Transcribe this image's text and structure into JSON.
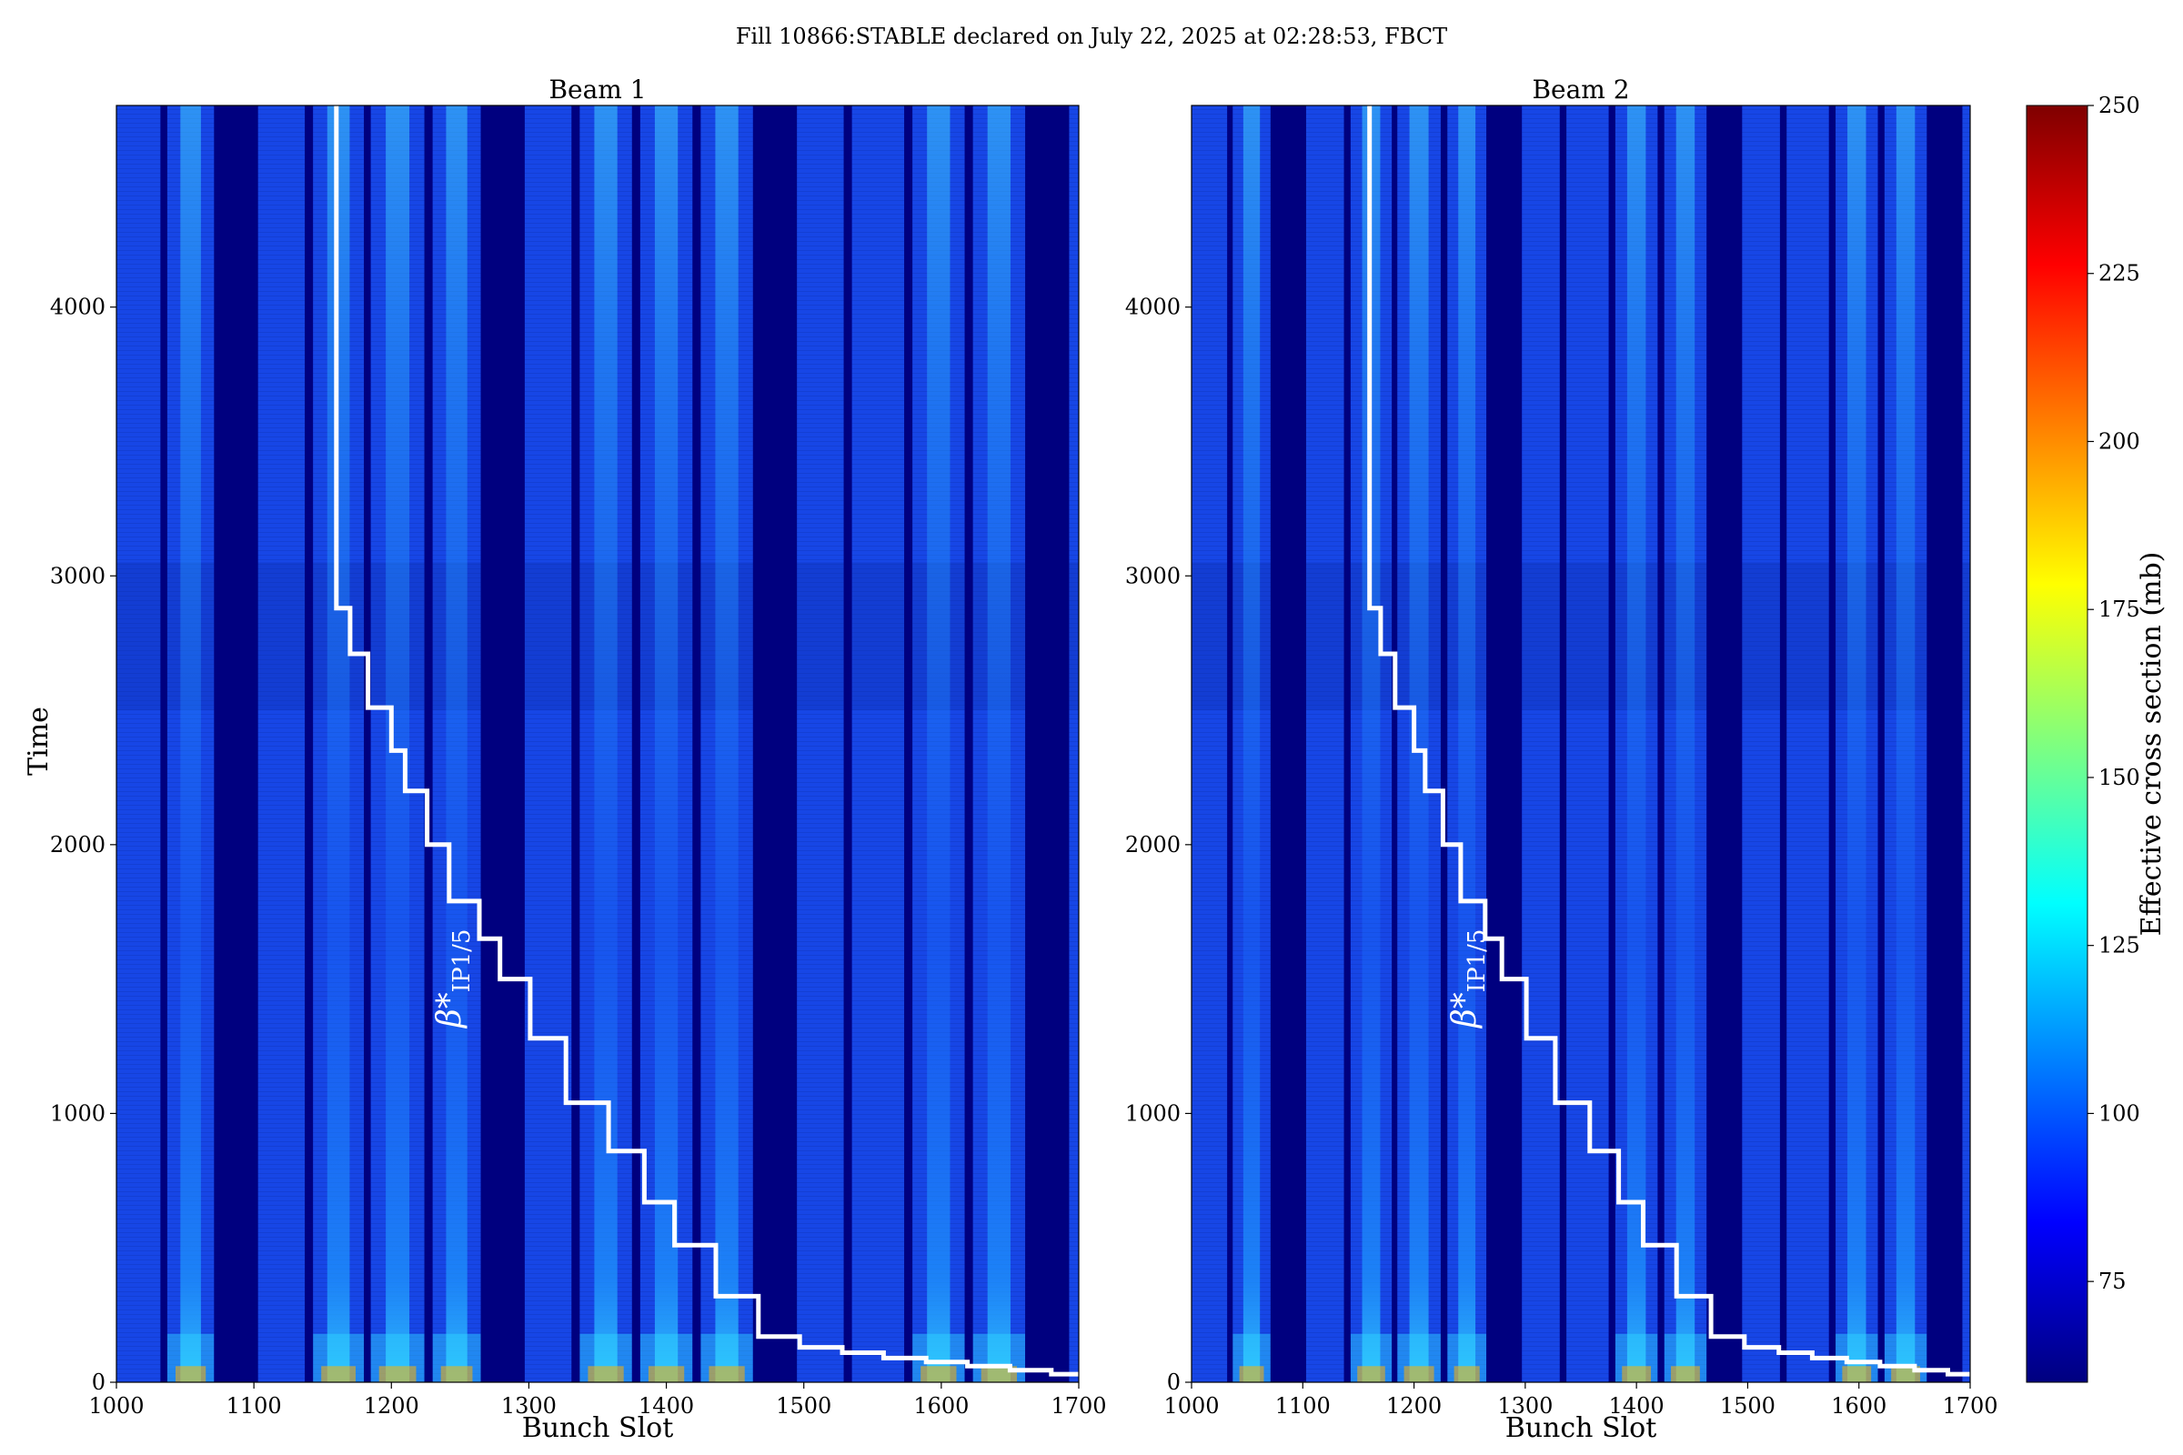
{
  "figure": {
    "suptitle": "Fill 10866:STABLE declared on July 22, 2025 at 02:28:53, FBCT"
  },
  "chart_data": [
    {
      "type": "heatmap",
      "title": "Beam 1",
      "xlabel": "Bunch Slot",
      "ylabel": "Time",
      "xlim": [
        1000,
        1700
      ],
      "ylim": [
        0,
        4750
      ],
      "x_ticks": [
        1000,
        1100,
        1200,
        1300,
        1400,
        1500,
        1600,
        1700
      ],
      "y_ticks": [
        0,
        1000,
        2000,
        3000,
        4000
      ],
      "empty_slot_gaps": [
        [
          1032,
          1037
        ],
        [
          1071,
          1103
        ],
        [
          1137,
          1143
        ],
        [
          1180,
          1185
        ],
        [
          1224,
          1230
        ],
        [
          1265,
          1297
        ],
        [
          1331,
          1337
        ],
        [
          1375,
          1381
        ],
        [
          1419,
          1425
        ],
        [
          1463,
          1495
        ],
        [
          1529,
          1535
        ],
        [
          1573,
          1579
        ],
        [
          1617,
          1623
        ],
        [
          1661,
          1693
        ]
      ],
      "bright_trains": [
        [
          1037,
          1071
        ],
        [
          1143,
          1180
        ],
        [
          1185,
          1224
        ],
        [
          1230,
          1265
        ],
        [
          1337,
          1375
        ],
        [
          1381,
          1419
        ],
        [
          1425,
          1463
        ],
        [
          1579,
          1617
        ],
        [
          1623,
          1661
        ]
      ],
      "annotation": {
        "label": "β*",
        "subscript": "IP1/5",
        "step_line": {
          "x": [
            1160,
            1160,
            1170,
            1170,
            1183,
            1183,
            1200,
            1200,
            1210,
            1210,
            1226,
            1226,
            1242,
            1242,
            1264,
            1264,
            1279,
            1279,
            1301,
            1301,
            1327,
            1327,
            1358,
            1358,
            1384,
            1384,
            1406,
            1406,
            1436,
            1436,
            1467,
            1467,
            1497,
            1497,
            1528,
            1528,
            1558,
            1558,
            1589,
            1589,
            1619,
            1619,
            1650,
            1650,
            1680,
            1680,
            1700
          ],
          "y": [
            4750,
            2880,
            2880,
            2710,
            2710,
            2510,
            2510,
            2350,
            2350,
            2200,
            2200,
            2000,
            2000,
            1790,
            1790,
            1650,
            1650,
            1500,
            1500,
            1280,
            1280,
            1040,
            1040,
            860,
            860,
            670,
            670,
            510,
            510,
            320,
            320,
            170,
            170,
            130,
            130,
            110,
            110,
            90,
            90,
            75,
            75,
            60,
            60,
            45,
            45,
            30,
            30
          ]
        }
      }
    },
    {
      "type": "heatmap",
      "title": "Beam 2",
      "xlabel": "Bunch Slot",
      "ylabel": "",
      "xlim": [
        1000,
        1700
      ],
      "ylim": [
        0,
        4750
      ],
      "x_ticks": [
        1000,
        1100,
        1200,
        1300,
        1400,
        1500,
        1600,
        1700
      ],
      "y_ticks": [
        0,
        1000,
        2000,
        3000,
        4000
      ],
      "empty_slot_gaps": [
        [
          1032,
          1037
        ],
        [
          1071,
          1103
        ],
        [
          1137,
          1143
        ],
        [
          1180,
          1185
        ],
        [
          1224,
          1230
        ],
        [
          1265,
          1297
        ],
        [
          1331,
          1337
        ],
        [
          1375,
          1381
        ],
        [
          1419,
          1425
        ],
        [
          1463,
          1495
        ],
        [
          1529,
          1535
        ],
        [
          1573,
          1579
        ],
        [
          1617,
          1623
        ],
        [
          1661,
          1693
        ]
      ],
      "bright_trains": [
        [
          1037,
          1071
        ],
        [
          1143,
          1180
        ],
        [
          1185,
          1224
        ],
        [
          1230,
          1265
        ],
        [
          1381,
          1419
        ],
        [
          1425,
          1463
        ],
        [
          1579,
          1617
        ],
        [
          1623,
          1661
        ]
      ],
      "annotation": {
        "label": "β*",
        "subscript": "IP1/5",
        "step_line": {
          "x": [
            1160,
            1160,
            1170,
            1170,
            1183,
            1183,
            1200,
            1200,
            1210,
            1210,
            1226,
            1226,
            1242,
            1242,
            1264,
            1264,
            1279,
            1279,
            1301,
            1301,
            1327,
            1327,
            1358,
            1358,
            1384,
            1384,
            1406,
            1406,
            1436,
            1436,
            1467,
            1467,
            1497,
            1497,
            1528,
            1528,
            1558,
            1558,
            1589,
            1589,
            1619,
            1619,
            1650,
            1650,
            1680,
            1680,
            1700
          ],
          "y": [
            4750,
            2880,
            2880,
            2710,
            2710,
            2510,
            2510,
            2350,
            2350,
            2200,
            2200,
            2000,
            2000,
            1790,
            1790,
            1650,
            1650,
            1500,
            1500,
            1280,
            1280,
            1040,
            1040,
            860,
            860,
            670,
            670,
            510,
            510,
            320,
            320,
            170,
            170,
            130,
            130,
            110,
            110,
            90,
            90,
            75,
            75,
            60,
            60,
            45,
            45,
            30,
            30
          ]
        }
      }
    }
  ],
  "colorbar": {
    "label": "Effective cross section (mb)",
    "vmin": 60,
    "vmax": 250,
    "ticks": [
      75,
      100,
      125,
      150,
      175,
      200,
      225,
      250
    ],
    "colormap": "jet",
    "colors": [
      "#00007f",
      "#0000ff",
      "#007fff",
      "#00ffff",
      "#7fff7f",
      "#ffff00",
      "#ff7f00",
      "#ff0000",
      "#7f0000"
    ]
  }
}
